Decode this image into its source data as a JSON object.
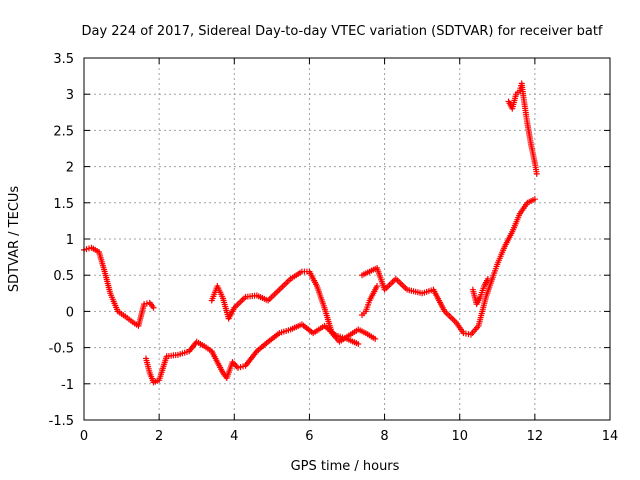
{
  "chart_data": {
    "type": "scatter",
    "title": "Day 224 of 2017, Sidereal Day-to-day VTEC variation (SDTVAR) for receiver batf",
    "xlabel": "GPS time / hours",
    "ylabel": "SDTVAR / TECUs",
    "xlim": [
      0,
      14
    ],
    "ylim": [
      -1.5,
      3.5
    ],
    "x_ticks": [
      "0",
      "2",
      "4",
      "6",
      "8",
      "10",
      "12",
      "14"
    ],
    "y_ticks": [
      "-1.5",
      "-1",
      "-0.5",
      "0",
      "0.5",
      "1",
      "1.5",
      "2",
      "2.5",
      "3",
      "3.5"
    ],
    "grid": true,
    "marker": "+",
    "color": "#ff0000",
    "series": [
      {
        "x": [
          0.0,
          0.2,
          0.4,
          0.55,
          0.7,
          0.9,
          1.1,
          1.3,
          1.45,
          1.6,
          1.75,
          1.85
        ],
        "y": [
          0.85,
          0.88,
          0.82,
          0.55,
          0.25,
          0.0,
          -0.07,
          -0.15,
          -0.2,
          0.1,
          0.12,
          0.05
        ]
      },
      {
        "x": [
          1.65,
          1.75,
          1.85,
          2.0,
          2.2,
          2.5,
          2.8,
          3.0,
          3.2,
          3.4,
          3.55,
          3.7,
          3.8,
          3.95,
          4.1,
          4.3,
          4.6,
          4.9,
          5.2,
          5.5,
          5.8,
          6.1,
          6.4,
          6.7,
          7.0,
          7.3
        ],
        "y": [
          -0.65,
          -0.85,
          -0.98,
          -0.95,
          -0.62,
          -0.6,
          -0.55,
          -0.42,
          -0.48,
          -0.55,
          -0.7,
          -0.85,
          -0.92,
          -0.7,
          -0.78,
          -0.75,
          -0.55,
          -0.42,
          -0.3,
          -0.25,
          -0.18,
          -0.3,
          -0.2,
          -0.33,
          -0.38,
          -0.45
        ]
      },
      {
        "x": [
          3.4,
          3.55,
          3.7,
          3.85,
          4.0,
          4.3,
          4.6,
          4.9,
          5.2,
          5.5,
          5.8,
          6.0,
          6.2,
          6.4,
          6.6,
          6.8,
          7.0,
          7.3,
          7.5,
          7.75
        ],
        "y": [
          0.15,
          0.35,
          0.18,
          -0.1,
          0.05,
          0.2,
          0.22,
          0.15,
          0.3,
          0.45,
          0.55,
          0.55,
          0.35,
          0.05,
          -0.3,
          -0.42,
          -0.35,
          -0.25,
          -0.3,
          -0.38
        ]
      },
      {
        "x": [
          7.4,
          7.6,
          7.8,
          8.0,
          8.3,
          8.6,
          9.0,
          9.3,
          9.6,
          9.9,
          10.1,
          10.3,
          10.5,
          10.7,
          10.9,
          11.0,
          11.2,
          11.4,
          11.6,
          11.8,
          12.0
        ],
        "y": [
          0.5,
          0.55,
          0.6,
          0.3,
          0.45,
          0.3,
          0.25,
          0.3,
          0.0,
          -0.15,
          -0.3,
          -0.32,
          -0.2,
          0.2,
          0.5,
          0.65,
          0.9,
          1.1,
          1.35,
          1.5,
          1.55
        ]
      },
      {
        "x": [
          7.4,
          7.5,
          7.6,
          7.7,
          7.8
        ],
        "y": [
          -0.05,
          0.0,
          0.15,
          0.25,
          0.35
        ]
      },
      {
        "x": [
          10.35,
          10.45,
          10.55,
          10.65,
          10.75
        ],
        "y": [
          0.3,
          0.1,
          0.2,
          0.35,
          0.45
        ]
      },
      {
        "x": [
          11.3,
          11.4,
          11.5,
          11.6,
          11.65,
          11.7,
          11.8,
          11.9,
          12.0,
          12.05
        ],
        "y": [
          2.9,
          2.8,
          3.0,
          3.05,
          3.15,
          2.95,
          2.6,
          2.3,
          2.05,
          1.9
        ]
      }
    ]
  }
}
